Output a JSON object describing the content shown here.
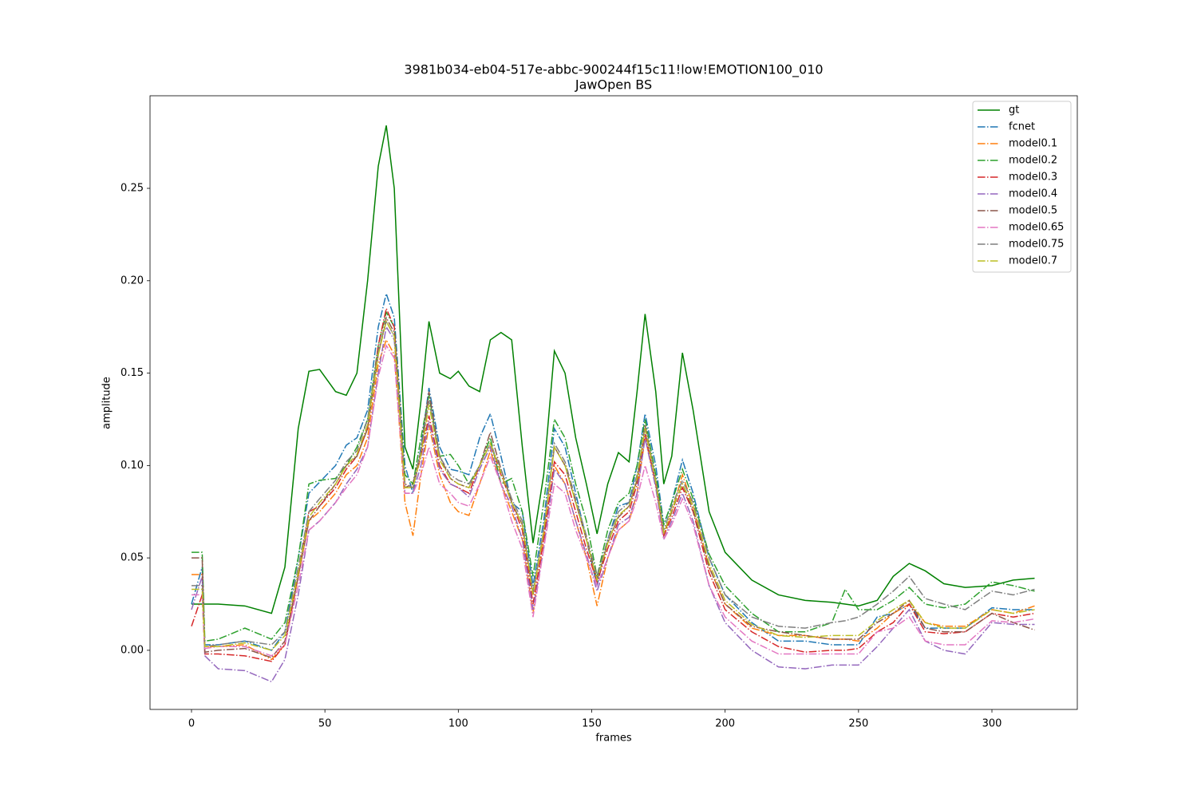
{
  "chart_data": {
    "type": "line",
    "title": "3981b034-eb04-517e-abbc-900244f15c11!low!EMOTION100_010",
    "subtitle": "JawOpen BS",
    "xlabel": "frames",
    "ylabel": "amplitude",
    "xlim": [
      -15.55,
      332.0
    ],
    "ylim": [
      -0.032,
      0.3001
    ],
    "xticks": [
      0,
      50,
      100,
      150,
      200,
      250,
      300
    ],
    "yticks": [
      {
        "value": 0,
        "label": "0.00"
      },
      0.05,
      {
        "value": 0.1,
        "label": "0.10"
      },
      0.15,
      {
        "value": 0.2,
        "label": "0.20"
      },
      0.25
    ],
    "grid": false,
    "legend": "upper right",
    "x": [
      0,
      4,
      5,
      10,
      20,
      30,
      35,
      40,
      44,
      48,
      54,
      58,
      62,
      66,
      70,
      73,
      76,
      80,
      83,
      86,
      89,
      93,
      97,
      100,
      104,
      108,
      112,
      116,
      120,
      124,
      128,
      132,
      136,
      140,
      144,
      148,
      152,
      156,
      160,
      164,
      167,
      170,
      174,
      177,
      180,
      184,
      188,
      194,
      200,
      210,
      220,
      230,
      240,
      245,
      250,
      257,
      263,
      269,
      275,
      282,
      290,
      300,
      308,
      316
    ],
    "series": [
      {
        "name": "gt",
        "color": "#008000",
        "style": "solid",
        "values": [
          0.025,
          0.025,
          0.025,
          0.025,
          0.024,
          0.02,
          0.045,
          0.12,
          0.151,
          0.152,
          0.14,
          0.138,
          0.15,
          0.2,
          0.262,
          0.284,
          0.25,
          0.11,
          0.098,
          0.135,
          0.178,
          0.15,
          0.147,
          0.151,
          0.143,
          0.14,
          0.168,
          0.172,
          0.168,
          0.11,
          0.058,
          0.095,
          0.162,
          0.15,
          0.115,
          0.09,
          0.063,
          0.09,
          0.107,
          0.102,
          0.14,
          0.182,
          0.14,
          0.09,
          0.105,
          0.161,
          0.13,
          0.075,
          0.053,
          0.038,
          0.03,
          0.027,
          0.026,
          0.025,
          0.024,
          0.027,
          0.04,
          0.047,
          0.043,
          0.036,
          0.034,
          0.035,
          0.038,
          0.039
        ]
      },
      {
        "name": "fcnet",
        "color": "#1f77b4",
        "style": "dashdot",
        "values": [
          0.025,
          0.045,
          0.003,
          0.003,
          0.005,
          0.0,
          0.01,
          0.05,
          0.085,
          0.091,
          0.1,
          0.111,
          0.115,
          0.13,
          0.175,
          0.193,
          0.18,
          0.1,
          0.085,
          0.11,
          0.142,
          0.11,
          0.098,
          0.097,
          0.095,
          0.115,
          0.128,
          0.105,
          0.08,
          0.075,
          0.035,
          0.07,
          0.12,
          0.11,
          0.085,
          0.06,
          0.035,
          0.06,
          0.078,
          0.08,
          0.1,
          0.128,
          0.1,
          0.068,
          0.08,
          0.103,
          0.085,
          0.05,
          0.03,
          0.015,
          0.005,
          0.005,
          0.003,
          0.003,
          0.003,
          0.018,
          0.02,
          0.025,
          0.012,
          0.012,
          0.012,
          0.023,
          0.022,
          0.022
        ]
      },
      {
        "name": "model0.1",
        "color": "#ff7f0e",
        "style": "dashdot",
        "values": [
          0.041,
          0.041,
          0.002,
          0.002,
          0.003,
          -0.005,
          0.003,
          0.04,
          0.07,
          0.075,
          0.085,
          0.095,
          0.1,
          0.115,
          0.155,
          0.168,
          0.16,
          0.08,
          0.062,
          0.095,
          0.122,
          0.095,
          0.08,
          0.075,
          0.073,
          0.09,
          0.108,
          0.09,
          0.075,
          0.06,
          0.02,
          0.06,
          0.1,
          0.09,
          0.07,
          0.05,
          0.024,
          0.05,
          0.065,
          0.07,
          0.085,
          0.115,
          0.09,
          0.062,
          0.075,
          0.095,
          0.078,
          0.045,
          0.025,
          0.012,
          0.008,
          0.008,
          0.006,
          0.006,
          0.005,
          0.012,
          0.02,
          0.025,
          0.015,
          0.013,
          0.013,
          0.022,
          0.02,
          0.024
        ]
      },
      {
        "name": "model0.2",
        "color": "#2ca02c",
        "style": "dashdot",
        "values": [
          0.053,
          0.053,
          0.005,
          0.006,
          0.012,
          0.006,
          0.015,
          0.05,
          0.09,
          0.092,
          0.093,
          0.1,
          0.11,
          0.125,
          0.165,
          0.183,
          0.175,
          0.095,
          0.09,
          0.115,
          0.138,
          0.105,
          0.106,
          0.1,
          0.09,
          0.1,
          0.115,
          0.09,
          0.093,
          0.075,
          0.04,
          0.08,
          0.125,
          0.115,
          0.09,
          0.07,
          0.04,
          0.065,
          0.08,
          0.085,
          0.1,
          0.125,
          0.095,
          0.068,
          0.08,
          0.098,
          0.082,
          0.052,
          0.035,
          0.02,
          0.01,
          0.01,
          0.015,
          0.033,
          0.022,
          0.022,
          0.027,
          0.034,
          0.025,
          0.023,
          0.025,
          0.037,
          0.035,
          0.032
        ]
      },
      {
        "name": "model0.3",
        "color": "#d62728",
        "style": "dashdot",
        "values": [
          0.013,
          0.03,
          -0.002,
          -0.002,
          -0.003,
          -0.006,
          0.003,
          0.04,
          0.075,
          0.078,
          0.088,
          0.098,
          0.105,
          0.12,
          0.165,
          0.185,
          0.175,
          0.09,
          0.088,
          0.105,
          0.127,
          0.1,
          0.09,
          0.088,
          0.085,
          0.1,
          0.112,
          0.095,
          0.08,
          0.065,
          0.025,
          0.06,
          0.102,
          0.095,
          0.075,
          0.055,
          0.037,
          0.055,
          0.07,
          0.075,
          0.09,
          0.117,
          0.09,
          0.062,
          0.072,
          0.088,
          0.075,
          0.042,
          0.022,
          0.01,
          0.002,
          -0.001,
          0.0,
          0.0,
          0.001,
          0.01,
          0.015,
          0.025,
          0.01,
          0.009,
          0.01,
          0.02,
          0.018,
          0.02
        ]
      },
      {
        "name": "model0.4",
        "color": "#9467bd",
        "style": "dashdot",
        "values": [
          0.022,
          0.04,
          -0.003,
          -0.01,
          -0.011,
          -0.017,
          -0.005,
          0.03,
          0.065,
          0.07,
          0.08,
          0.09,
          0.098,
          0.11,
          0.15,
          0.175,
          0.168,
          0.085,
          0.085,
          0.1,
          0.124,
          0.098,
          0.09,
          0.088,
          0.083,
          0.098,
          0.11,
          0.09,
          0.078,
          0.06,
          0.022,
          0.055,
          0.098,
          0.09,
          0.07,
          0.052,
          0.032,
          0.05,
          0.068,
          0.072,
          0.085,
          0.115,
          0.088,
          0.06,
          0.07,
          0.085,
          0.07,
          0.035,
          0.015,
          0.0,
          -0.009,
          -0.01,
          -0.008,
          -0.008,
          -0.008,
          0.002,
          0.012,
          0.022,
          0.005,
          0.0,
          -0.002,
          0.015,
          0.014,
          0.014
        ]
      },
      {
        "name": "model0.5",
        "color": "#8c564b",
        "style": "dashdot",
        "values": [
          0.05,
          0.05,
          -0.001,
          0.0,
          0.001,
          -0.004,
          0.005,
          0.04,
          0.07,
          0.078,
          0.09,
          0.1,
          0.105,
          0.12,
          0.16,
          0.18,
          0.172,
          0.088,
          0.09,
          0.108,
          0.14,
          0.105,
          0.093,
          0.09,
          0.088,
          0.1,
          0.118,
          0.098,
          0.08,
          0.068,
          0.03,
          0.065,
          0.11,
          0.1,
          0.08,
          0.06,
          0.038,
          0.058,
          0.072,
          0.078,
          0.092,
          0.122,
          0.092,
          0.063,
          0.075,
          0.09,
          0.076,
          0.045,
          0.025,
          0.013,
          0.01,
          0.008,
          0.006,
          0.006,
          0.006,
          0.015,
          0.02,
          0.027,
          0.012,
          0.01,
          0.01,
          0.02,
          0.015,
          0.011
        ]
      },
      {
        "name": "model0.65",
        "color": "#e377c2",
        "style": "dashdot",
        "values": [
          0.03,
          0.03,
          0.001,
          0.002,
          0.002,
          -0.003,
          0.003,
          0.035,
          0.065,
          0.07,
          0.08,
          0.088,
          0.095,
          0.11,
          0.148,
          0.165,
          0.158,
          0.085,
          0.085,
          0.095,
          0.11,
          0.09,
          0.085,
          0.08,
          0.078,
          0.09,
          0.105,
          0.09,
          0.07,
          0.055,
          0.018,
          0.055,
          0.09,
          0.085,
          0.065,
          0.05,
          0.035,
          0.05,
          0.065,
          0.07,
          0.082,
          0.1,
          0.08,
          0.06,
          0.068,
          0.082,
          0.068,
          0.035,
          0.018,
          0.005,
          -0.002,
          -0.002,
          -0.002,
          -0.002,
          -0.002,
          0.01,
          0.012,
          0.018,
          0.005,
          0.003,
          0.003,
          0.016,
          0.015,
          0.017
        ]
      },
      {
        "name": "model0.75",
        "color": "#7f7f7f",
        "style": "dashdot",
        "values": [
          0.035,
          0.035,
          0.002,
          0.003,
          0.005,
          0.003,
          0.01,
          0.045,
          0.075,
          0.082,
          0.092,
          0.102,
          0.108,
          0.125,
          0.162,
          0.178,
          0.17,
          0.09,
          0.088,
          0.108,
          0.135,
          0.105,
          0.095,
          0.092,
          0.09,
          0.1,
          0.112,
          0.098,
          0.082,
          0.07,
          0.032,
          0.065,
          0.112,
          0.102,
          0.082,
          0.062,
          0.04,
          0.06,
          0.075,
          0.08,
          0.095,
          0.12,
          0.092,
          0.065,
          0.078,
          0.092,
          0.08,
          0.05,
          0.03,
          0.018,
          0.013,
          0.012,
          0.015,
          0.016,
          0.018,
          0.025,
          0.032,
          0.04,
          0.028,
          0.025,
          0.022,
          0.032,
          0.03,
          0.033
        ]
      },
      {
        "name": "model0.7",
        "color": "#bcbd22",
        "style": "dashdot",
        "values": [
          0.033,
          0.033,
          0.002,
          0.002,
          0.004,
          0.0,
          0.008,
          0.042,
          0.072,
          0.08,
          0.09,
          0.1,
          0.106,
          0.122,
          0.16,
          0.178,
          0.17,
          0.088,
          0.088,
          0.106,
          0.133,
          0.103,
          0.093,
          0.09,
          0.088,
          0.1,
          0.112,
          0.096,
          0.08,
          0.068,
          0.03,
          0.064,
          0.11,
          0.1,
          0.08,
          0.06,
          0.038,
          0.058,
          0.073,
          0.078,
          0.093,
          0.12,
          0.091,
          0.063,
          0.076,
          0.09,
          0.078,
          0.047,
          0.027,
          0.014,
          0.008,
          0.007,
          0.008,
          0.008,
          0.008,
          0.016,
          0.022,
          0.027,
          0.015,
          0.012,
          0.012,
          0.022,
          0.02,
          0.022
        ]
      }
    ]
  }
}
